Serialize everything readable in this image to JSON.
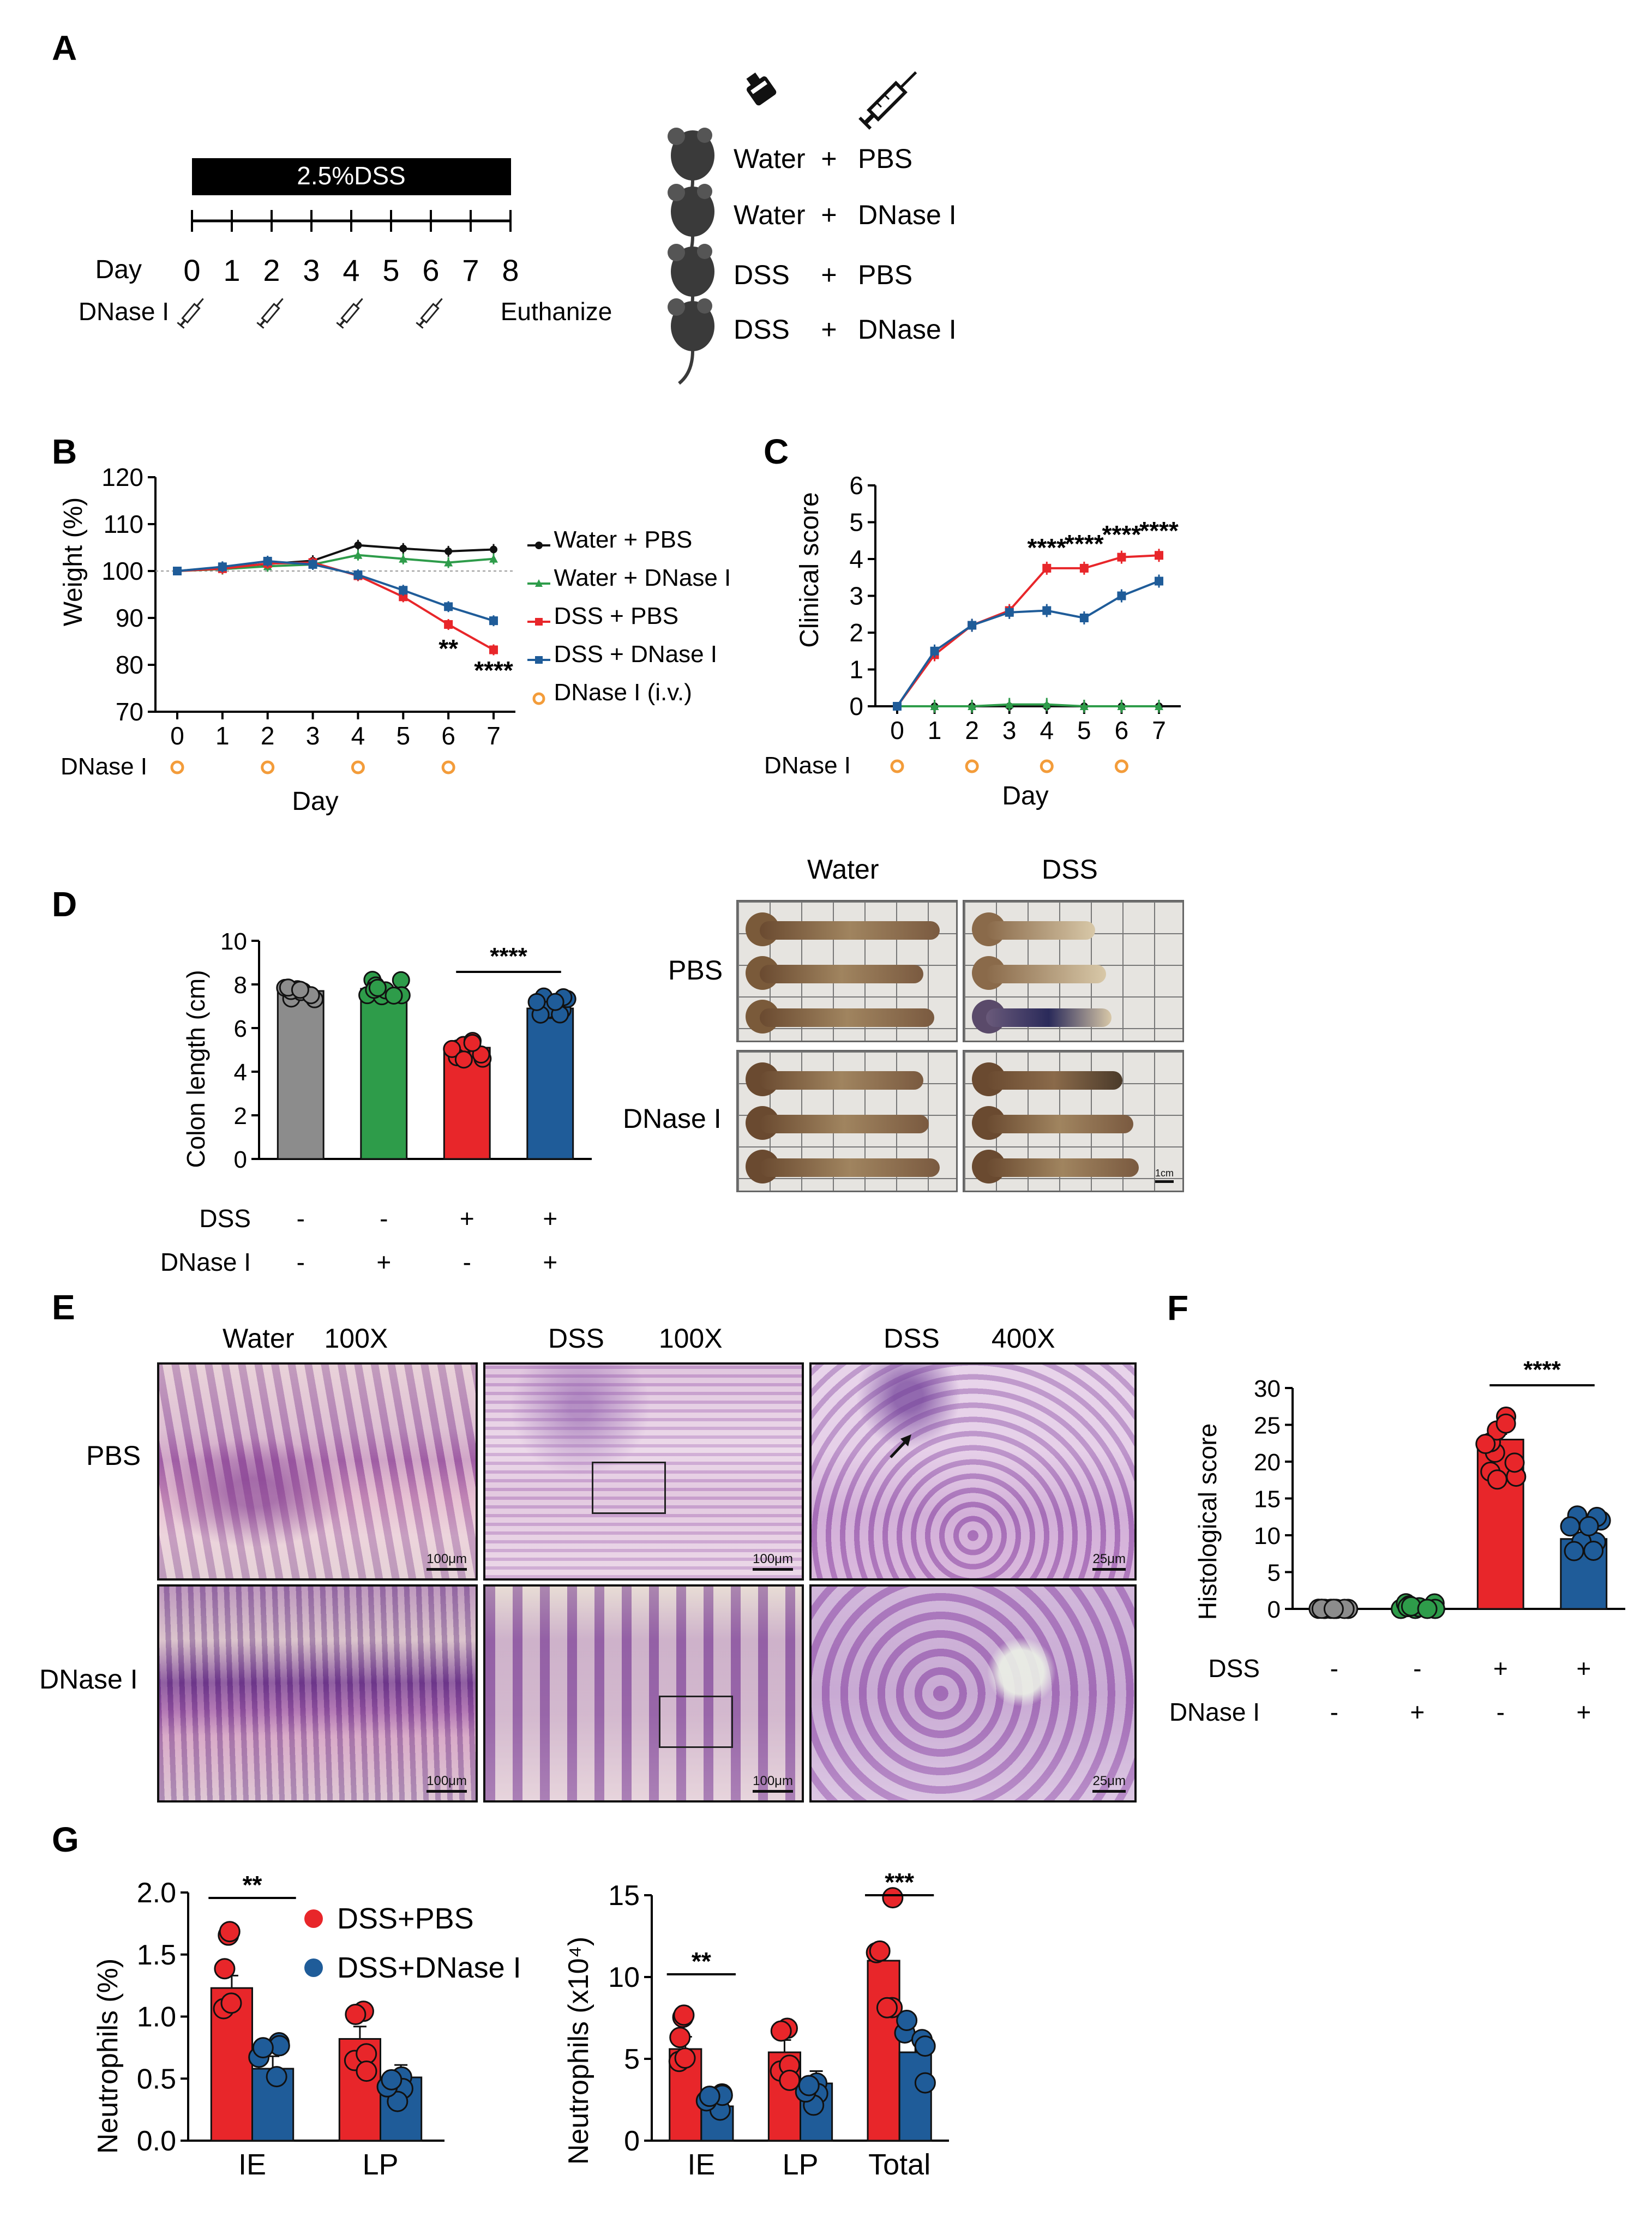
{
  "panel_labels": {
    "a": "A",
    "b": "B",
    "c": "C",
    "d": "D",
    "e": "E",
    "f": "F",
    "g": "G"
  },
  "panel_a": {
    "banner": "2.5%DSS",
    "day_label": "Day",
    "days": [
      "0",
      "1",
      "2",
      "3",
      "4",
      "5",
      "6",
      "7",
      "8"
    ],
    "dnase_label": "DNase I",
    "euthanize": "Euthanize",
    "groups": [
      {
        "drink": "Water",
        "plus": "+",
        "treat": "PBS"
      },
      {
        "drink": "Water",
        "plus": "+",
        "treat": "DNase I"
      },
      {
        "drink": "DSS",
        "plus": "+",
        "treat": "PBS"
      },
      {
        "drink": "DSS",
        "plus": "+",
        "treat": "DNase I"
      }
    ],
    "icons": [
      "drink-bottle-icon",
      "syringe-icon",
      "mouse-icon"
    ]
  },
  "colors": {
    "water_pbs": "#111111",
    "water_dnase": "#2e9c4a",
    "dss_pbs": "#e8262a",
    "dss_dnase": "#1f5c99",
    "grey": "#8c8c8c",
    "orange": "#f39c3a"
  },
  "chart_data": [
    {
      "id": "B",
      "type": "line",
      "x": [
        0,
        1,
        2,
        3,
        4,
        5,
        6,
        7
      ],
      "xticks": [
        "0",
        "1",
        "2",
        "3",
        "4",
        "5",
        "6",
        "7"
      ],
      "xlabel": "Day",
      "ylabel": "Weight (%)",
      "ylim": [
        70,
        120
      ],
      "yticks": [
        "70",
        "80",
        "90",
        "100",
        "110",
        "120"
      ],
      "reference_line": 100,
      "series": [
        {
          "name": "Water + PBS",
          "values": [
            100,
            100.8,
            101.5,
            102.2,
            105.5,
            104.8,
            104.2,
            104.6
          ]
        },
        {
          "name": "Water + DNase I",
          "values": [
            100,
            100.4,
            101,
            101.4,
            103.4,
            102.6,
            101.8,
            102.6
          ]
        },
        {
          "name": "DSS + PBS",
          "values": [
            100,
            100.5,
            101.6,
            101.8,
            99,
            94.5,
            88.6,
            83.2
          ]
        },
        {
          "name": "DSS + DNase I",
          "values": [
            100,
            100.9,
            102.1,
            101.4,
            99.2,
            95.9,
            92.4,
            89.4
          ]
        }
      ],
      "legend_marker_label": "DNase I (i.v.)",
      "dnase_row_label": "DNase I",
      "dnase_days": [
        0,
        2,
        4,
        6
      ],
      "annotations": [
        {
          "x": 6,
          "text": "**"
        },
        {
          "x": 7,
          "text": "****"
        }
      ]
    },
    {
      "id": "C",
      "type": "line",
      "x": [
        0,
        1,
        2,
        3,
        4,
        5,
        6,
        7
      ],
      "xticks": [
        "0",
        "1",
        "2",
        "3",
        "4",
        "5",
        "6",
        "7"
      ],
      "xlabel": "Day",
      "ylabel": "Clinical score",
      "ylim": [
        0,
        6
      ],
      "yticks": [
        "0",
        "1",
        "2",
        "3",
        "4",
        "5",
        "6"
      ],
      "series": [
        {
          "name": "Water + PBS",
          "values": [
            0,
            0,
            0,
            0,
            0,
            0,
            0,
            0
          ]
        },
        {
          "name": "Water + DNase I",
          "values": [
            0,
            0,
            0,
            0.05,
            0.05,
            0,
            0,
            0
          ]
        },
        {
          "name": "DSS + PBS",
          "values": [
            0,
            1.4,
            2.2,
            2.6,
            3.75,
            3.75,
            4.05,
            4.1
          ]
        },
        {
          "name": "DSS + DNase I",
          "values": [
            0,
            1.5,
            2.2,
            2.55,
            2.6,
            2.4,
            3.0,
            3.4
          ]
        }
      ],
      "dnase_row_label": "DNase I",
      "dnase_days": [
        0,
        2,
        4,
        6
      ],
      "annotations": [
        {
          "x": 4,
          "text": "****"
        },
        {
          "x": 5,
          "text": "****"
        },
        {
          "x": 6,
          "text": "****"
        },
        {
          "x": 7,
          "text": "****"
        }
      ]
    },
    {
      "id": "D",
      "type": "bar",
      "ylabel": "Colon length (cm)",
      "ylim": [
        0,
        10
      ],
      "yticks": [
        "0",
        "2",
        "4",
        "6",
        "8",
        "10"
      ],
      "values": [
        7.7,
        7.8,
        5.1,
        6.9
      ],
      "row_labels": [
        "DSS",
        "DNase I"
      ],
      "dss_signs": [
        "-",
        "-",
        "+",
        "+"
      ],
      "dnase_signs": [
        "-",
        "+",
        "-",
        "+"
      ],
      "significance": {
        "between": [
          2,
          3
        ],
        "text": "****"
      }
    },
    {
      "id": "F",
      "type": "bar",
      "ylabel": "Histological score",
      "ylim": [
        0,
        30
      ],
      "yticks": [
        "0",
        "5",
        "10",
        "15",
        "20",
        "25",
        "30"
      ],
      "values": [
        0,
        0.3,
        23,
        9.5
      ],
      "row_labels": [
        "DSS",
        "DNase I"
      ],
      "dss_signs": [
        "-",
        "-",
        "+",
        "+"
      ],
      "dnase_signs": [
        "-",
        "+",
        "-",
        "+"
      ],
      "significance": {
        "between": [
          2,
          3
        ],
        "text": "****"
      }
    },
    {
      "id": "G1",
      "type": "bar",
      "categories": [
        "IE",
        "LP"
      ],
      "ylabel": "Neutrophils (%)",
      "ylim": [
        0,
        2.0
      ],
      "yticks": [
        "0.0",
        "0.5",
        "1.0",
        "1.5",
        "2.0"
      ],
      "series": [
        {
          "name": "DSS+PBS",
          "values": [
            1.23,
            0.82
          ]
        },
        {
          "name": "DSS+DNase I",
          "values": [
            0.58,
            0.51
          ]
        }
      ],
      "significance": [
        {
          "category": "IE",
          "text": "**"
        }
      ]
    },
    {
      "id": "G2",
      "type": "bar",
      "categories": [
        "IE",
        "LP",
        "Total"
      ],
      "ylabel": "Neutrophils (x10⁴)",
      "ylim": [
        0,
        15
      ],
      "yticks": [
        "0",
        "5",
        "10",
        "15"
      ],
      "series": [
        {
          "name": "DSS+PBS",
          "values": [
            5.6,
            5.4,
            11.0
          ]
        },
        {
          "name": "DSS+DNase I",
          "values": [
            2.1,
            3.5,
            5.4
          ]
        }
      ],
      "significance": [
        {
          "category": "IE",
          "text": "**"
        },
        {
          "category": "Total",
          "text": "***"
        }
      ]
    }
  ],
  "panel_d_images": {
    "col_water": "Water",
    "col_dss": "DSS",
    "row_pbs": "PBS",
    "row_dnase": "DNase I",
    "scale": "1cm"
  },
  "panel_e": {
    "col1": "Water",
    "col1_mag": "100X",
    "col2": "DSS",
    "col2_mag": "100X",
    "col3": "DSS",
    "col3_mag": "400X",
    "row_pbs": "PBS",
    "row_dnase": "DNase I",
    "scale_100": "100μm",
    "scale_25": "25μm"
  }
}
